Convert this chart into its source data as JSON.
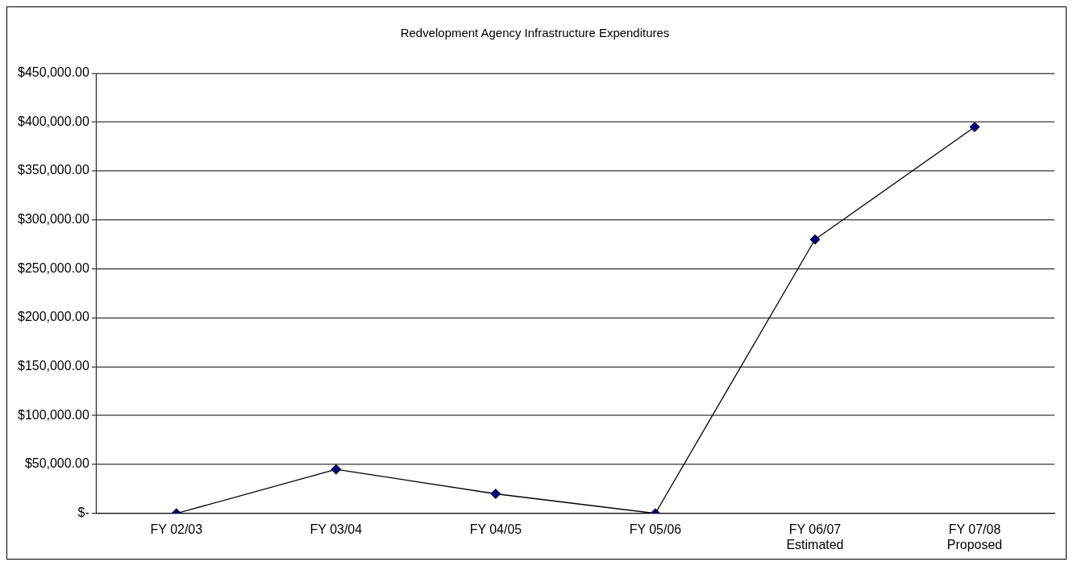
{
  "chart_data": {
    "type": "line",
    "title": "Redvelopment Agency Infrastructure Expenditures",
    "categories": [
      "FY 02/03",
      "FY 03/04",
      "FY 04/05",
      "FY 05/06",
      "FY 06/07\nEstimated",
      "FY 07/08\nProposed"
    ],
    "series": [
      {
        "color": "#000080",
        "values": [
          0,
          45000,
          20000,
          0,
          280000,
          395000
        ]
      }
    ],
    "ylim": [
      0,
      450000
    ],
    "yticks": [
      {
        "value": 0,
        "label": "$-"
      },
      {
        "value": 50000,
        "label": "$50,000.00"
      },
      {
        "value": 100000,
        "label": "$100,000.00"
      },
      {
        "value": 150000,
        "label": "$150,000.00"
      },
      {
        "value": 200000,
        "label": "$200,000.00"
      },
      {
        "value": 250000,
        "label": "$250,000.00"
      },
      {
        "value": 300000,
        "label": "$300,000.00"
      },
      {
        "value": 350000,
        "label": "$350,000.00"
      },
      {
        "value": 400000,
        "label": "$400,000.00"
      },
      {
        "value": 450000,
        "label": "$450,000.00"
      }
    ],
    "grid": "y",
    "legend": false,
    "marker": "diamond",
    "line_style": "solid"
  }
}
